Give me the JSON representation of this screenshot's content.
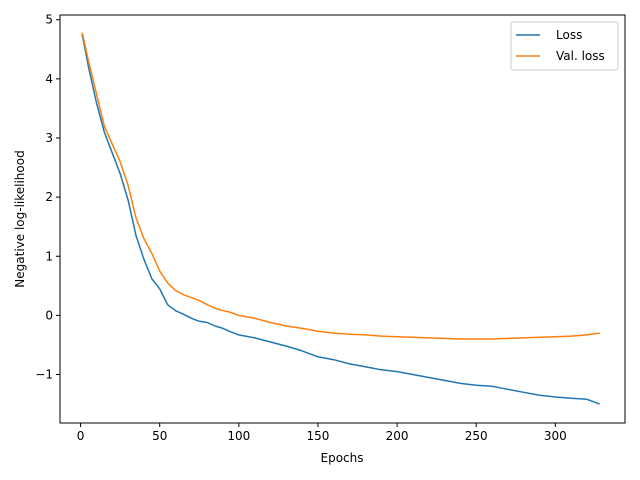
{
  "chart_data": {
    "type": "line",
    "title": "",
    "xlabel": "Epochs",
    "ylabel": "Negative log-likelihood",
    "xlim": [
      -13,
      344
    ],
    "ylim": [
      -1.82,
      5.08
    ],
    "xticks": [
      0,
      50,
      100,
      150,
      200,
      250,
      300
    ],
    "yticks": [
      -1,
      0,
      1,
      2,
      3,
      4,
      5
    ],
    "ytick_labels": [
      "−1",
      "0",
      "1",
      "2",
      "3",
      "4",
      "5"
    ],
    "grid": false,
    "legend_position": "top-right",
    "series": [
      {
        "name": "Loss",
        "color": "#1f77b4",
        "x": [
          1,
          5,
          10,
          15,
          20,
          25,
          30,
          35,
          40,
          45,
          50,
          55,
          60,
          65,
          70,
          75,
          80,
          85,
          90,
          95,
          100,
          110,
          120,
          130,
          140,
          150,
          160,
          170,
          180,
          190,
          200,
          210,
          220,
          230,
          240,
          250,
          260,
          270,
          280,
          290,
          300,
          310,
          320,
          328
        ],
        "y": [
          4.75,
          4.2,
          3.6,
          3.1,
          2.75,
          2.4,
          1.95,
          1.35,
          0.95,
          0.62,
          0.45,
          0.18,
          0.08,
          0.02,
          -0.05,
          -0.1,
          -0.12,
          -0.18,
          -0.22,
          -0.28,
          -0.33,
          -0.38,
          -0.45,
          -0.52,
          -0.6,
          -0.7,
          -0.75,
          -0.82,
          -0.87,
          -0.92,
          -0.95,
          -1.0,
          -1.05,
          -1.1,
          -1.15,
          -1.18,
          -1.2,
          -1.25,
          -1.3,
          -1.35,
          -1.38,
          -1.4,
          -1.42,
          -1.5
        ]
      },
      {
        "name": "Val. loss",
        "color": "#ff7f0e",
        "x": [
          1,
          5,
          10,
          15,
          20,
          25,
          30,
          35,
          40,
          45,
          50,
          55,
          60,
          65,
          70,
          75,
          80,
          85,
          90,
          95,
          100,
          110,
          120,
          130,
          140,
          150,
          160,
          170,
          180,
          190,
          200,
          210,
          220,
          230,
          240,
          250,
          260,
          270,
          280,
          290,
          300,
          310,
          320,
          328
        ],
        "y": [
          4.78,
          4.3,
          3.75,
          3.2,
          2.9,
          2.6,
          2.2,
          1.65,
          1.3,
          1.05,
          0.75,
          0.55,
          0.42,
          0.35,
          0.3,
          0.25,
          0.18,
          0.12,
          0.08,
          0.05,
          0.0,
          -0.05,
          -0.12,
          -0.18,
          -0.22,
          -0.27,
          -0.3,
          -0.32,
          -0.33,
          -0.35,
          -0.36,
          -0.37,
          -0.38,
          -0.39,
          -0.4,
          -0.4,
          -0.4,
          -0.39,
          -0.38,
          -0.37,
          -0.36,
          -0.35,
          -0.33,
          -0.3
        ]
      }
    ]
  }
}
